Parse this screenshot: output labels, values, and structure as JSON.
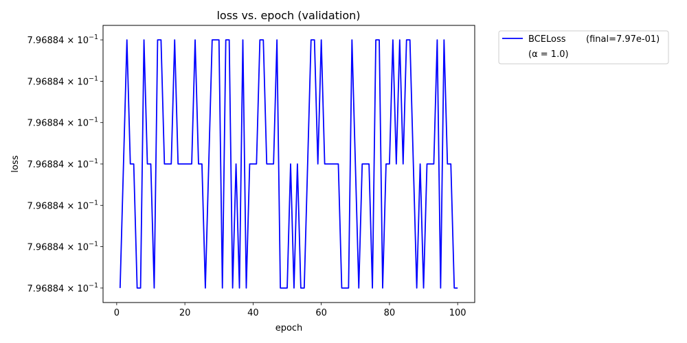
{
  "chart_data": {
    "type": "line",
    "title": "loss vs. epoch (validation)",
    "xlabel": "epoch",
    "ylabel": "loss",
    "xlim": [
      -4.0,
      105.0
    ],
    "ylim": [
      -0.35,
      6.35
    ],
    "xticks": [
      0,
      20,
      40,
      60,
      80,
      100
    ],
    "ytick_positions": [
      0,
      1,
      2,
      3,
      4,
      5,
      6
    ],
    "ytick_mantissa": "7.96884",
    "ytick_base": "10",
    "ytick_exponent": "−1",
    "grid": false,
    "legend_position": "outside-top-right",
    "line_color": "#0000ff",
    "series": [
      {
        "name": "BCELoss",
        "legend_note": "(final=7.97e-01)",
        "legend_note2": "(α = 1.0)",
        "x": [
          1,
          2,
          3,
          4,
          5,
          6,
          7,
          8,
          9,
          10,
          11,
          12,
          13,
          14,
          15,
          16,
          17,
          18,
          19,
          20,
          21,
          22,
          23,
          24,
          25,
          26,
          27,
          28,
          29,
          30,
          31,
          32,
          33,
          34,
          35,
          36,
          37,
          38,
          39,
          40,
          41,
          42,
          43,
          44,
          45,
          46,
          47,
          48,
          49,
          50,
          51,
          52,
          53,
          54,
          55,
          56,
          57,
          58,
          59,
          60,
          61,
          62,
          63,
          64,
          65,
          66,
          67,
          68,
          69,
          70,
          71,
          72,
          73,
          74,
          75,
          76,
          77,
          78,
          79,
          80,
          81,
          82,
          83,
          84,
          85,
          86,
          87,
          88,
          89,
          90,
          91,
          92,
          93,
          94,
          95,
          96,
          97,
          98,
          99,
          100
        ],
        "y": [
          0,
          3,
          6,
          3,
          3,
          0,
          0,
          6,
          3,
          3,
          0,
          6,
          6,
          3,
          3,
          3,
          6,
          3,
          3,
          3,
          3,
          3,
          6,
          3,
          3,
          0,
          3,
          6,
          6,
          6,
          0,
          6,
          6,
          0,
          3,
          0,
          6,
          0,
          3,
          3,
          3,
          6,
          6,
          3,
          3,
          3,
          6,
          0,
          0,
          0,
          3,
          0,
          3,
          0,
          0,
          3,
          6,
          6,
          3,
          6,
          3,
          3,
          3,
          3,
          3,
          0,
          0,
          0,
          6,
          3,
          0,
          3,
          3,
          3,
          0,
          6,
          6,
          0,
          3,
          3,
          6,
          3,
          6,
          3,
          6,
          6,
          3,
          0,
          3,
          0,
          3,
          3,
          3,
          6,
          0,
          6,
          3,
          3,
          0,
          0
        ]
      }
    ]
  }
}
